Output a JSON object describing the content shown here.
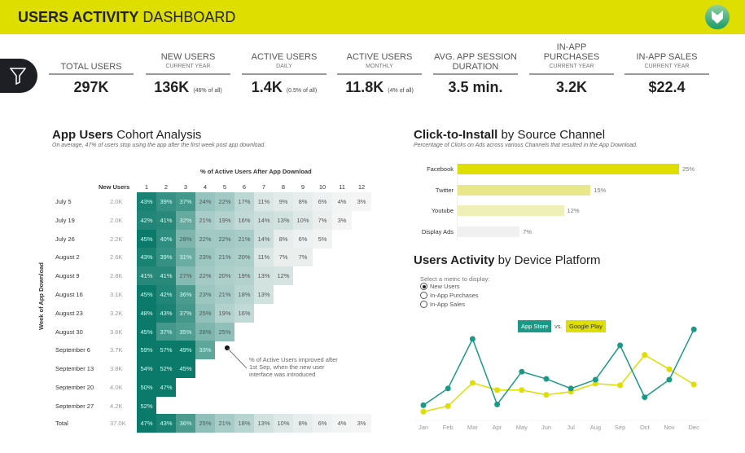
{
  "header": {
    "title_bold": "USERS ACTIVITY",
    "title_light": "DASHBOARD",
    "logo": "shield-v-logo"
  },
  "filter_icon": "funnel-icon",
  "kpis": [
    {
      "label": "TOTAL USERS",
      "sub": "",
      "value": "297K",
      "note": ""
    },
    {
      "label": "NEW USERS",
      "sub": "CURRENT YEAR",
      "value": "136K",
      "note": "(46% of all)"
    },
    {
      "label": "ACTIVE USERS",
      "sub": "DAILY",
      "value": "1.4K",
      "note": "(0.5% of all)"
    },
    {
      "label": "ACTIVE USERS",
      "sub": "MONTHLY",
      "value": "11.8K",
      "note": "(4% of all)"
    },
    {
      "label": "AVG. APP SESSION DURATION",
      "sub": "",
      "value": "3.5 min.",
      "note": ""
    },
    {
      "label": "IN-APP PURCHASES",
      "sub": "CURRENT YEAR",
      "value": "3.2K",
      "note": ""
    },
    {
      "label": "IN-APP SALES",
      "sub": "CURRENT YEAR",
      "value": "$22.4",
      "note": ""
    }
  ],
  "cohort": {
    "title_bold": "App Users",
    "title_light": "Cohort Analysis",
    "subtitle": "On average, 47% of users stop using the app after the first week post app download.",
    "col_title": "% of Active Users After App Download",
    "row_axis": "Week of App Download",
    "new_users_header": "New Users",
    "columns": [
      "1",
      "2",
      "3",
      "4",
      "5",
      "6",
      "7",
      "8",
      "9",
      "10",
      "11",
      "12"
    ],
    "rows": [
      {
        "week": "July 5",
        "new": "2.0K",
        "values": [
          43,
          39,
          37,
          24,
          22,
          17,
          11,
          9,
          8,
          6,
          4,
          3
        ]
      },
      {
        "week": "July 19",
        "new": "2.0K",
        "values": [
          42,
          41,
          32,
          21,
          19,
          16,
          14,
          13,
          10,
          7,
          3
        ]
      },
      {
        "week": "July 26",
        "new": "2.2K",
        "values": [
          45,
          40,
          28,
          22,
          22,
          21,
          14,
          8,
          6,
          5
        ]
      },
      {
        "week": "August 2",
        "new": "2.6K",
        "values": [
          43,
          39,
          31,
          23,
          21,
          20,
          11,
          7,
          7
        ]
      },
      {
        "week": "August 9",
        "new": "2.8K",
        "values": [
          41,
          41,
          27,
          22,
          20,
          19,
          13,
          12
        ]
      },
      {
        "week": "August 16",
        "new": "3.1K",
        "values": [
          45,
          42,
          36,
          23,
          21,
          18,
          13
        ]
      },
      {
        "week": "August 23",
        "new": "3.2K",
        "values": [
          48,
          43,
          37,
          25,
          19,
          16
        ]
      },
      {
        "week": "August 30",
        "new": "3.6K",
        "values": [
          45,
          37,
          35,
          28,
          25
        ]
      },
      {
        "week": "September 6",
        "new": "3.7K",
        "values": [
          59,
          57,
          49,
          33
        ]
      },
      {
        "week": "September 13",
        "new": "3.8K",
        "values": [
          54,
          52,
          45
        ]
      },
      {
        "week": "September 20",
        "new": "4.0K",
        "values": [
          50,
          47
        ]
      },
      {
        "week": "September 27",
        "new": "4.2K",
        "values": [
          52
        ]
      }
    ],
    "total": {
      "week": "Total",
      "new": "37.0K",
      "values": [
        47,
        43,
        36,
        25,
        21,
        18,
        13,
        10,
        8,
        6,
        4,
        3
      ]
    },
    "annotation": "% of Active Users improved after 1st Sep, when the new user interface was introduced"
  },
  "click_install": {
    "title_bold": "Click-to-Install",
    "title_light": "by Source Channel",
    "subtitle": "Percentage of Clicks on Ads across various Channels that resulted in the App Download.",
    "chart_data": {
      "type": "bar",
      "orientation": "horizontal",
      "categories": [
        "Facebook",
        "Twitter",
        "Youtube",
        "Display Ads"
      ],
      "values": [
        25,
        15,
        12,
        7
      ],
      "unit": "%",
      "colors": [
        "#dede00",
        "#e8e88a",
        "#efefb8",
        "#f0f0f0"
      ]
    }
  },
  "device": {
    "title_bold": "Users Activity",
    "title_light": "by Device Platform",
    "select_label": "Select a metric to display:",
    "options": [
      {
        "label": "New Users",
        "selected": true
      },
      {
        "label": "In-App Purchases",
        "selected": false
      },
      {
        "label": "In-App Sales",
        "selected": false
      }
    ],
    "legend_a": "App Store",
    "legend_vs": "vs.",
    "legend_b": "Google Play",
    "chart_data": {
      "type": "line",
      "x": [
        "Jan",
        "Feb",
        "Mar",
        "Apr",
        "May",
        "Jun",
        "Jul",
        "Aug",
        "Sep",
        "Oct",
        "Nov",
        "Dec"
      ],
      "series": [
        {
          "name": "App Store",
          "color": "#1a9987",
          "values": [
            19,
            40,
            102,
            20,
            61,
            52,
            40,
            51,
            94,
            29,
            51,
            114
          ]
        },
        {
          "name": "Google Play",
          "color": "#dede00",
          "values": [
            11,
            18,
            47,
            38,
            38,
            32,
            36,
            46,
            44,
            82,
            64,
            45
          ]
        }
      ]
    }
  }
}
